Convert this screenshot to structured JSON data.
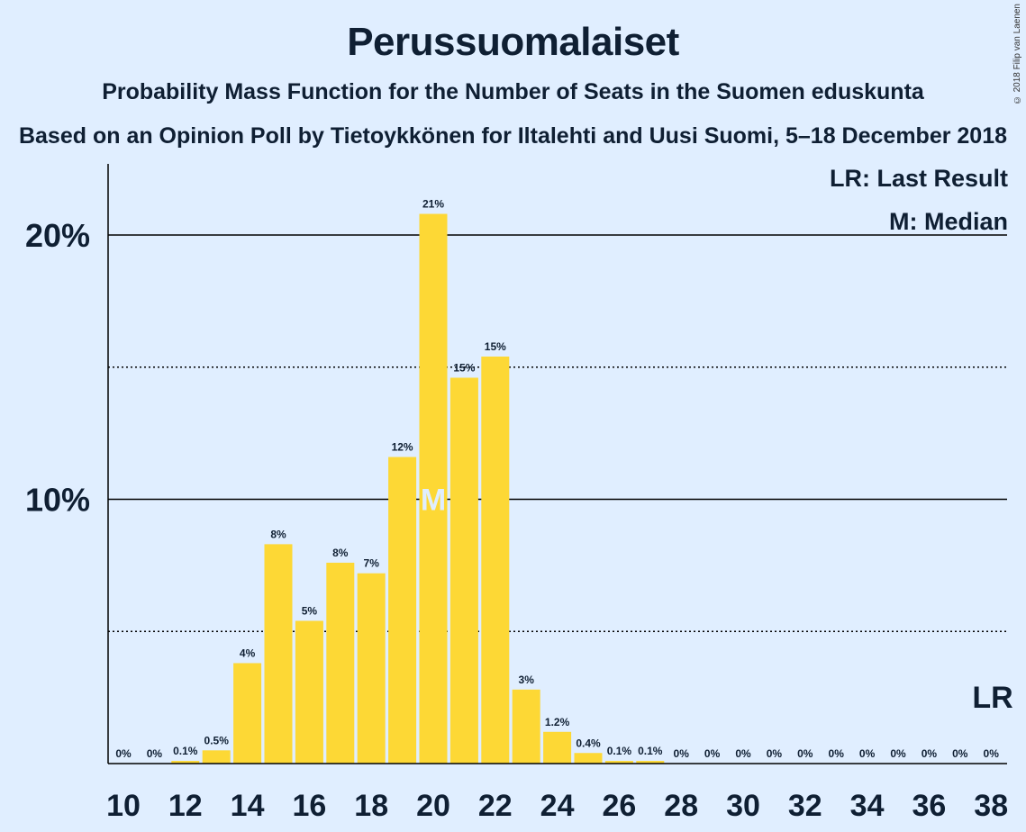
{
  "header": {
    "title": "Perussuomalaiset",
    "subtitle": "Probability Mass Function for the Number of Seats in the Suomen eduskunta",
    "subtitle2": "Based on an Opinion Poll by Tietoykkönen for Iltalehti and Uusi Suomi, 5–18 December 2018",
    "copyright": "© 2018 Filip van Laenen"
  },
  "legend": {
    "last_result": "LR: Last Result",
    "median": "M: Median"
  },
  "colors": {
    "background": "#e0eeff",
    "bar": "#fdd835",
    "text": "#0f1f33"
  },
  "chart_data": {
    "type": "bar",
    "categories": [
      10,
      11,
      12,
      13,
      14,
      15,
      16,
      17,
      18,
      19,
      20,
      21,
      22,
      23,
      24,
      25,
      26,
      27,
      28,
      29,
      30,
      31,
      32,
      33,
      34,
      35,
      36,
      37,
      38
    ],
    "values": [
      0,
      0,
      0.1,
      0.5,
      3.8,
      8.3,
      5.4,
      7.6,
      7.2,
      11.6,
      20.8,
      14.6,
      15.4,
      2.8,
      1.2,
      0.4,
      0.1,
      0.1,
      0,
      0,
      0,
      0,
      0,
      0,
      0,
      0,
      0,
      0,
      0
    ],
    "data_labels": [
      "0%",
      "0%",
      "0.1%",
      "0.5%",
      "4%",
      "8%",
      "5%",
      "8%",
      "7%",
      "12%",
      "21%",
      "15%",
      "15%",
      "3%",
      "1.2%",
      "0.4%",
      "0.1%",
      "0.1%",
      "0%",
      "0%",
      "0%",
      "0%",
      "0%",
      "0%",
      "0%",
      "0%",
      "0%",
      "0%",
      "0%"
    ],
    "x_tick_labels": [
      "10",
      "12",
      "14",
      "16",
      "18",
      "20",
      "22",
      "24",
      "26",
      "28",
      "30",
      "32",
      "34",
      "36",
      "38"
    ],
    "y_tick_labels": [
      "10%",
      "20%"
    ],
    "ylim": [
      0,
      22.5
    ],
    "solid_gridlines": [
      10,
      20
    ],
    "dotted_gridlines": [
      5,
      15
    ],
    "median_seat": 20,
    "median_marker": "M",
    "last_result_seat": 38,
    "last_result_marker": "LR"
  }
}
